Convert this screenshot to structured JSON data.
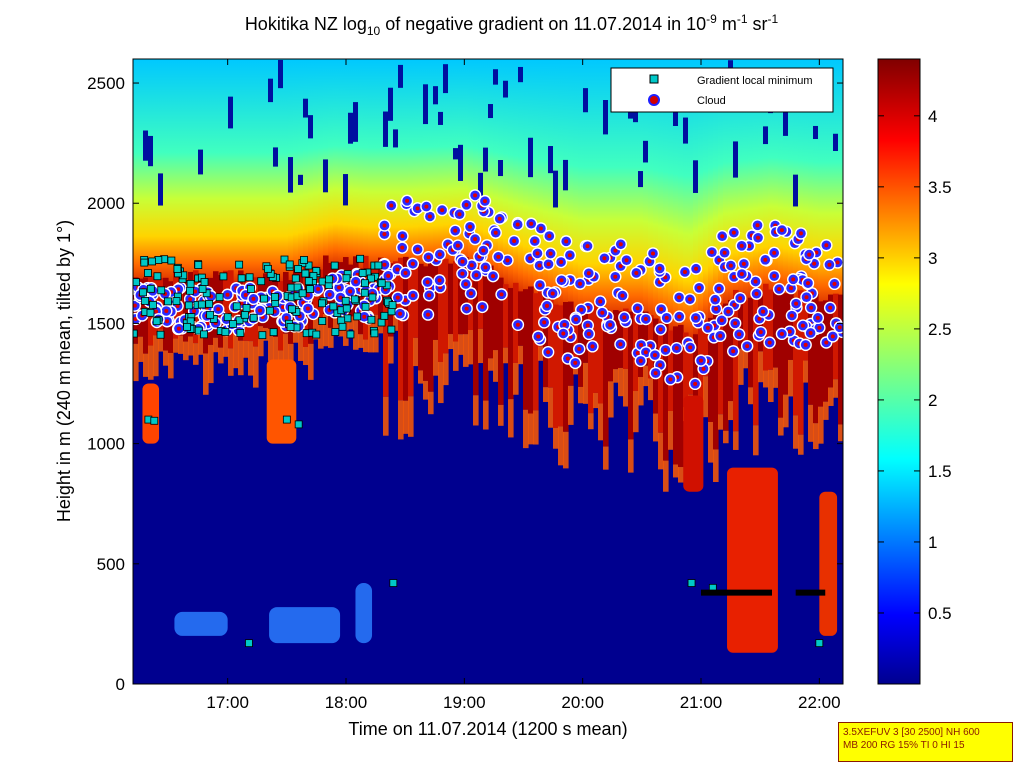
{
  "title": {
    "part1": "Hokitika NZ log",
    "sub1": "10",
    "part2": " of negative gradient on 11.07.2014 in 10",
    "sup1": "-9",
    "part3": " m",
    "sup2": "-1",
    "part4": " sr",
    "sup3": "-1"
  },
  "chart_data": {
    "type": "heatmap",
    "xlabel": "Time on 11.07.2014 (1200 s mean)",
    "ylabel": "Height in m (240 m mean, tilted by 1°)",
    "x_tick_labels": [
      "17:00",
      "18:00",
      "19:00",
      "20:00",
      "21:00",
      "22:00"
    ],
    "x_tick_hours": [
      17,
      18,
      19,
      20,
      21,
      22
    ],
    "xlim_hours": [
      16.2,
      22.2
    ],
    "y_ticks": [
      0,
      500,
      1000,
      1500,
      2000,
      2500
    ],
    "ylim": [
      0,
      2600
    ],
    "colorbar": {
      "ticks": [
        0.5,
        1,
        1.5,
        2,
        2.5,
        3,
        3.5,
        4
      ],
      "tick_labels": [
        "0.5",
        "1",
        "1.5",
        "2",
        "2.5",
        "3",
        "3.5",
        "4"
      ],
      "range": [
        0,
        4.4
      ],
      "colormap": "jet"
    },
    "legend": {
      "placement": "top-right",
      "entries": [
        {
          "label": "Gradient local minimum",
          "marker": "square",
          "color": "#00c8c8"
        },
        {
          "label": "Cloud",
          "marker": "circle",
          "color": "#d40000"
        }
      ]
    },
    "cloud_layer_approx": [
      {
        "x": 16.3,
        "y": 1550
      },
      {
        "x": 16.6,
        "y": 1550
      },
      {
        "x": 17.0,
        "y": 1550
      },
      {
        "x": 17.5,
        "y": 1550
      },
      {
        "x": 17.9,
        "y": 1620
      },
      {
        "x": 18.2,
        "y": 1600
      },
      {
        "x": 18.5,
        "y": 1600
      },
      {
        "x": 19.0,
        "y": 1620
      },
      {
        "x": 19.5,
        "y": 1500
      },
      {
        "x": 20.0,
        "y": 1400
      },
      {
        "x": 20.5,
        "y": 1400
      },
      {
        "x": 20.9,
        "y": 1300
      },
      {
        "x": 21.2,
        "y": 1450
      },
      {
        "x": 21.6,
        "y": 1500
      },
      {
        "x": 22.0,
        "y": 1450
      }
    ],
    "black_segments_approx": [
      {
        "x_start": 21.0,
        "x_end": 21.6,
        "y": 380
      },
      {
        "x_start": 21.8,
        "x_end": 22.05,
        "y": 380
      }
    ]
  },
  "info_box": {
    "line1": "3.5XEFUV 3 [30 2500] NH 600",
    "line2": "MB 200 RG 15% TI 0 HI 15"
  },
  "colors": {
    "background": "#ffffff",
    "infobox_bg": "#ffff00",
    "infobox_text": "#8a1a00"
  }
}
